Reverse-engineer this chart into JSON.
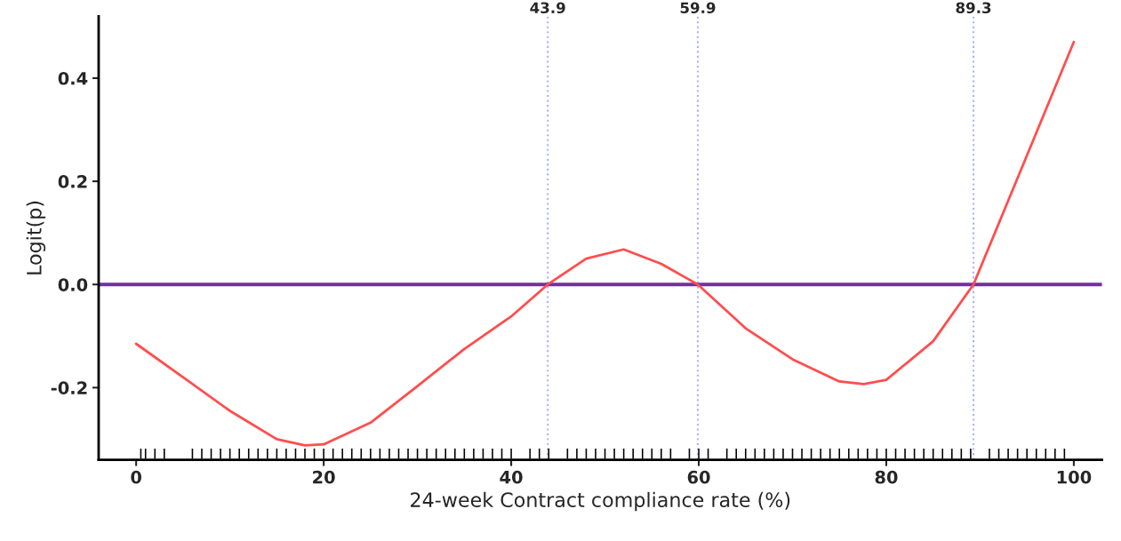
{
  "chart_data": {
    "type": "line",
    "xlabel": "24-week Contract compliance rate (%)",
    "ylabel": "Logit(p)",
    "xlim": [
      -4,
      103
    ],
    "ylim": [
      -0.34,
      0.52
    ],
    "xticks": [
      0,
      20,
      40,
      60,
      80,
      100
    ],
    "yticks": [
      {
        "value": -0.2,
        "label": "-0.2"
      },
      {
        "value": 0,
        "label": "0.0"
      },
      0.2,
      0.4
    ],
    "grid": false,
    "legend": false,
    "series": [
      {
        "color": "#ff4d4d",
        "x": [
          0,
          5,
          10,
          15,
          18,
          20,
          25,
          30,
          35,
          40,
          43.9,
          48,
          52,
          56,
          59.9,
          65,
          70,
          75,
          77.6,
          80,
          85,
          89.3,
          95,
          100
        ],
        "values": [
          -0.115,
          -0.18,
          -0.245,
          -0.3,
          -0.312,
          -0.31,
          -0.268,
          -0.197,
          -0.125,
          -0.062,
          0,
          0.05,
          0.068,
          0.04,
          0,
          -0.085,
          -0.145,
          -0.188,
          -0.193,
          -0.185,
          -0.11,
          0,
          0.25,
          0.47
        ]
      },
      {
        "type": "bar",
        "color": "#000000",
        "base": [
          -0.338,
          -0.338,
          -0.338,
          -0.338,
          -0.338,
          -0.338,
          -0.338,
          -0.338,
          -0.338,
          -0.338,
          -0.338,
          -0.338,
          -0.338,
          -0.338,
          -0.338,
          -0.338,
          -0.338,
          -0.338,
          -0.338,
          -0.338,
          -0.338,
          -0.338,
          -0.338,
          -0.338,
          -0.338,
          -0.338,
          -0.338,
          -0.338,
          -0.338,
          -0.338,
          -0.338,
          -0.338,
          -0.338,
          -0.338,
          -0.338,
          -0.338,
          -0.338,
          -0.338,
          -0.338,
          -0.338,
          -0.338,
          -0.338,
          -0.338,
          -0.338,
          -0.338,
          -0.338,
          -0.338,
          -0.338,
          -0.338,
          -0.338,
          -0.338,
          -0.338,
          -0.338,
          -0.338,
          -0.338,
          -0.338,
          -0.338,
          -0.338,
          -0.338,
          -0.338,
          -0.338,
          -0.338,
          -0.338,
          -0.338,
          -0.338,
          -0.338,
          -0.338,
          -0.338,
          -0.338,
          -0.338,
          -0.338,
          -0.338,
          -0.338,
          -0.338,
          -0.338,
          -0.338,
          -0.338,
          -0.338,
          -0.338,
          -0.338,
          -0.338,
          -0.338,
          -0.338,
          -0.338,
          -0.338,
          -0.338,
          -0.338,
          -0.338,
          -0.338,
          -0.338,
          -0.338,
          -0.338,
          -0.338
        ],
        "x": [
          0.5,
          1,
          2,
          3,
          6,
          7,
          8,
          9,
          10,
          11,
          12,
          13,
          14,
          15,
          16,
          17,
          18,
          19,
          20,
          21,
          22,
          23,
          24,
          25,
          26,
          27,
          28,
          29,
          30,
          31,
          32,
          33,
          34,
          35,
          36,
          37,
          38,
          39,
          40,
          42,
          43,
          44,
          46,
          47,
          48,
          49,
          50,
          51,
          52,
          53,
          54,
          55,
          56,
          57,
          59,
          60,
          61,
          63,
          64,
          65,
          66,
          67,
          68,
          69,
          70,
          71,
          72,
          73,
          74,
          75,
          76,
          77,
          78,
          79,
          80,
          81,
          82,
          83,
          84,
          85,
          86,
          87,
          88,
          89,
          91,
          92,
          93,
          94,
          95,
          96,
          97,
          98,
          99
        ],
        "values": [
          0.02,
          0.02,
          0.02,
          0.02,
          0.02,
          0.02,
          0.02,
          0.02,
          0.02,
          0.02,
          0.02,
          0.02,
          0.02,
          0.02,
          0.02,
          0.02,
          0.02,
          0.02,
          0.02,
          0.02,
          0.02,
          0.02,
          0.02,
          0.02,
          0.02,
          0.02,
          0.02,
          0.02,
          0.02,
          0.02,
          0.02,
          0.02,
          0.02,
          0.02,
          0.02,
          0.02,
          0.02,
          0.02,
          0.02,
          0.02,
          0.02,
          0.02,
          0.02,
          0.02,
          0.02,
          0.02,
          0.02,
          0.02,
          0.02,
          0.02,
          0.02,
          0.02,
          0.02,
          0.02,
          0.02,
          0.02,
          0.02,
          0.02,
          0.02,
          0.02,
          0.02,
          0.02,
          0.02,
          0.02,
          0.02,
          0.02,
          0.02,
          0.02,
          0.02,
          0.02,
          0.02,
          0.02,
          0.02,
          0.02,
          0.02,
          0.02,
          0.02,
          0.02,
          0.02,
          0.02,
          0.02,
          0.02,
          0.02,
          0.02,
          0.02,
          0.02,
          0.02,
          0.02,
          0.02,
          0.02,
          0.02,
          0.02,
          0.02
        ]
      }
    ],
    "ref_lines": [
      {
        "axis": "y",
        "value": 0,
        "color": "#7030a0",
        "line_style": "solid"
      },
      {
        "axis": "x",
        "value": 43.9,
        "label": "43.9",
        "color": "#aab0ff",
        "line_style": "dotted"
      },
      {
        "axis": "x",
        "value": 59.9,
        "label": "59.9",
        "color": "#aab0ff",
        "line_style": "dotted"
      },
      {
        "axis": "x",
        "value": 89.3,
        "label": "89.3",
        "color": "#aab0ff",
        "line_style": "dotted"
      }
    ]
  }
}
